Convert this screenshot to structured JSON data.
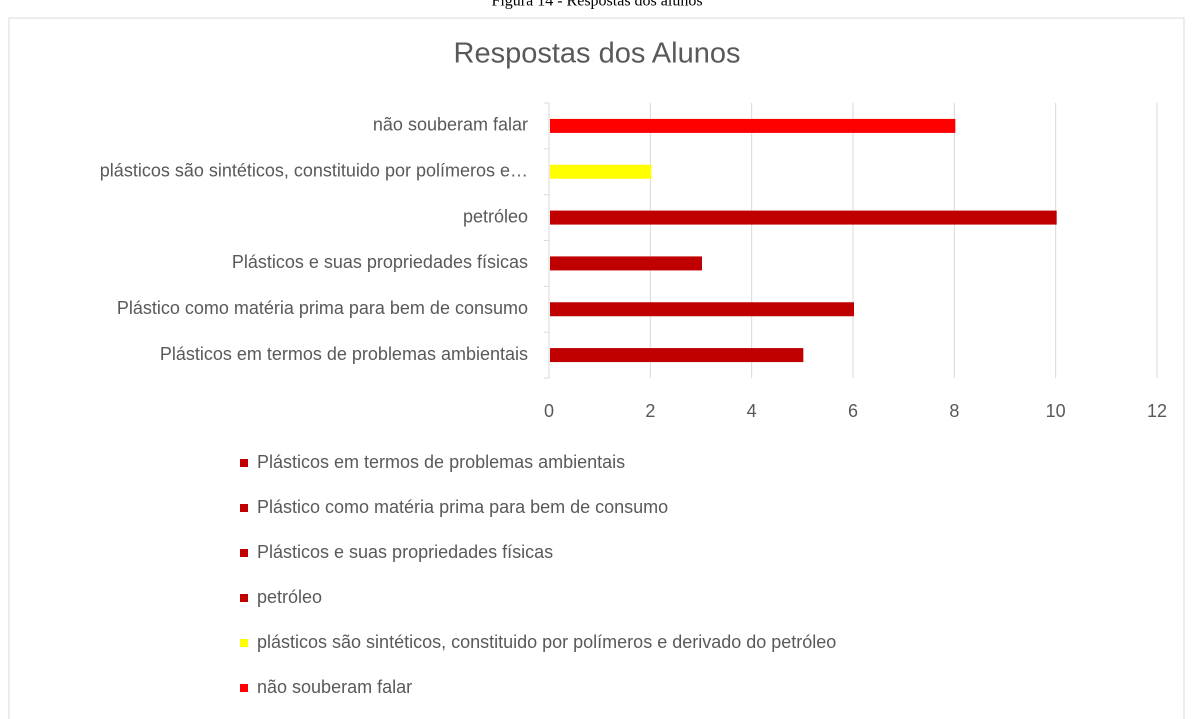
{
  "chart_data": {
    "type": "bar",
    "caption": "Figura 14 - Respostas dos alunos",
    "title": "Respostas dos Alunos",
    "orientation": "horizontal",
    "categories": [
      "Plásticos em termos de problemas ambientais",
      "Plástico como matéria prima para bem de consumo",
      "Plásticos e suas propriedades físicas",
      "petróleo",
      "plásticos são sintéticos, constituido por polímeros e…",
      "não souberam falar"
    ],
    "series": [
      {
        "name": "Plásticos em termos de problemas ambientais",
        "color": "#c00000",
        "values": [
          5,
          null,
          null,
          null,
          null,
          null
        ]
      },
      {
        "name": "Plástico como matéria prima para bem de consumo",
        "color": "#c00000",
        "values": [
          null,
          6,
          null,
          null,
          null,
          null
        ]
      },
      {
        "name": "Plásticos e suas propriedades físicas",
        "color": "#c00000",
        "values": [
          null,
          null,
          3,
          null,
          null,
          null
        ]
      },
      {
        "name": "petróleo",
        "color": "#c00000",
        "values": [
          null,
          null,
          null,
          10,
          null,
          null
        ]
      },
      {
        "name": "plásticos são sintéticos, constituido por polímeros e derivado do petróleo",
        "color": "#ffff00",
        "values": [
          null,
          null,
          null,
          null,
          2,
          null
        ]
      },
      {
        "name": "não souberam falar",
        "color": "#ff0000",
        "values": [
          null,
          null,
          null,
          null,
          null,
          8
        ]
      }
    ],
    "xlim": [
      0,
      12
    ],
    "xticks": [
      0,
      2,
      4,
      6,
      8,
      10,
      12
    ],
    "grid": true,
    "legend": "bottom"
  }
}
